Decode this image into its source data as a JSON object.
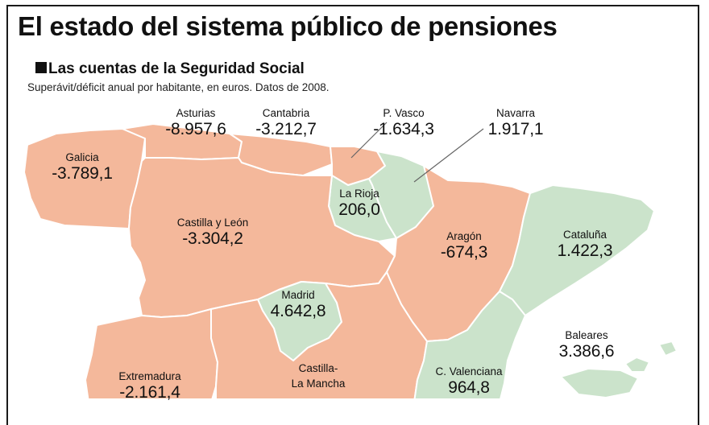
{
  "title": "El estado del sistema público de pensiones",
  "subtitle": "Las cuentas de la Seguridad Social",
  "note": "Superávit/déficit anual por habitante, en euros. Datos de 2008.",
  "colors": {
    "deficit": "#f4b89b",
    "surplus": "#cbe3cb",
    "border": "#ffffff",
    "leader": "#666666"
  },
  "regions": [
    {
      "id": "asturias",
      "name": "Asturias",
      "value": "-8.957,6",
      "status": "deficit"
    },
    {
      "id": "cantabria",
      "name": "Cantabria",
      "value": "-3.212,7",
      "status": "deficit"
    },
    {
      "id": "pvasco",
      "name": "P. Vasco",
      "value": "-1.634,3",
      "status": "deficit"
    },
    {
      "id": "navarra",
      "name": "Navarra",
      "value": "1.917,1",
      "status": "surplus"
    },
    {
      "id": "galicia",
      "name": "Galicia",
      "value": "-3.789,1",
      "status": "deficit"
    },
    {
      "id": "larioja",
      "name": "La Rioja",
      "value": "206,0",
      "status": "surplus"
    },
    {
      "id": "castillayleon",
      "name": "Castilla y León",
      "value": "-3.304,2",
      "status": "deficit"
    },
    {
      "id": "aragon",
      "name": "Aragón",
      "value": "-674,3",
      "status": "deficit"
    },
    {
      "id": "cataluna",
      "name": "Cataluña",
      "value": "1.422,3",
      "status": "surplus"
    },
    {
      "id": "madrid",
      "name": "Madrid",
      "value": "4.642,8",
      "status": "surplus"
    },
    {
      "id": "baleares",
      "name": "Baleares",
      "value": "3.386,6",
      "status": "surplus"
    },
    {
      "id": "extremadura",
      "name": "Extremadura",
      "value": "-2.161,4",
      "status": "deficit"
    },
    {
      "id": "castillalamancha",
      "name": "Castilla-\nLa Mancha",
      "value": "",
      "status": "deficit"
    },
    {
      "id": "cvalenciana",
      "name": "C. Valenciana",
      "value": "964,8",
      "status": "surplus"
    }
  ]
}
